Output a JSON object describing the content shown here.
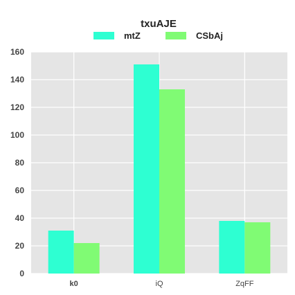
{
  "chart_data": {
    "type": "bar",
    "title": "txuAJE",
    "categories": [
      "k0",
      "iQ",
      "ZqFF"
    ],
    "series": [
      {
        "name": "mtZ",
        "color": "#2EFFD2",
        "values": [
          31,
          151,
          38
        ]
      },
      {
        "name": "CSbAj",
        "color": "#80FB74",
        "values": [
          22,
          133,
          37
        ]
      }
    ],
    "yticks": [
      0,
      20,
      40,
      60,
      80,
      100,
      120,
      140,
      160
    ],
    "ylim": [
      0,
      160
    ],
    "xlabel": "",
    "ylabel": "",
    "grid": true,
    "legend_position": "top-center"
  }
}
